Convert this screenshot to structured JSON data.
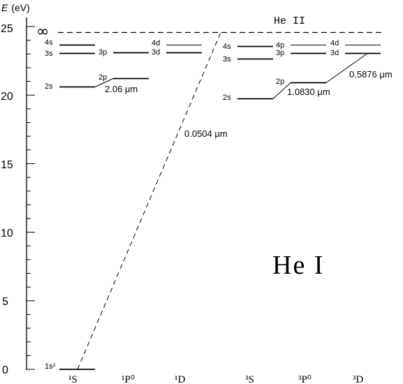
{
  "axis": {
    "label_symbol": "E",
    "label_unit": "(eV)",
    "ticks": [
      "0",
      "5",
      "10",
      "15",
      "20",
      "25"
    ],
    "ymin": 0,
    "ymax": 26
  },
  "infinity_symbol": "∞",
  "ion_label": "He II",
  "atom_label": "He I",
  "terms": [
    "¹S",
    "¹P⁰",
    "¹D",
    "³S",
    "³P⁰",
    "³D"
  ],
  "singlet": {
    "levels": [
      {
        "name": "1s²",
        "energy": 0.0
      },
      {
        "name": "2s",
        "energy": 20.6
      },
      {
        "name": "3s",
        "energy": 22.9
      },
      {
        "name": "4s",
        "energy": 23.7
      },
      {
        "name": "2p",
        "energy": 21.2
      },
      {
        "name": "3p",
        "energy": 23.0
      },
      {
        "name": "3d",
        "energy": 23.0
      },
      {
        "name": "4d",
        "energy": 23.7
      }
    ]
  },
  "triplet": {
    "levels": [
      {
        "name": "2s",
        "energy": 19.8
      },
      {
        "name": "3s",
        "energy": 22.7
      },
      {
        "name": "4s",
        "energy": 23.6
      },
      {
        "name": "2p",
        "energy": 21.0
      },
      {
        "name": "3p",
        "energy": 23.0
      },
      {
        "name": "4p",
        "energy": 23.7
      },
      {
        "name": "3d",
        "energy": 23.1
      },
      {
        "name": "4d",
        "energy": 23.7
      }
    ]
  },
  "ionization_energy": 24.6,
  "transitions": [
    {
      "label": "2.06 μm",
      "from": "singlet 2s",
      "to": "singlet 2p"
    },
    {
      "label": "0.0504 μm",
      "from": "singlet 1s²",
      "to": "ionization limit"
    },
    {
      "label": "1.0830 μm",
      "from": "triplet 2s",
      "to": "triplet 2p"
    },
    {
      "label": "0.5876 μm",
      "from": "triplet 2p",
      "to": "triplet 3d"
    }
  ]
}
